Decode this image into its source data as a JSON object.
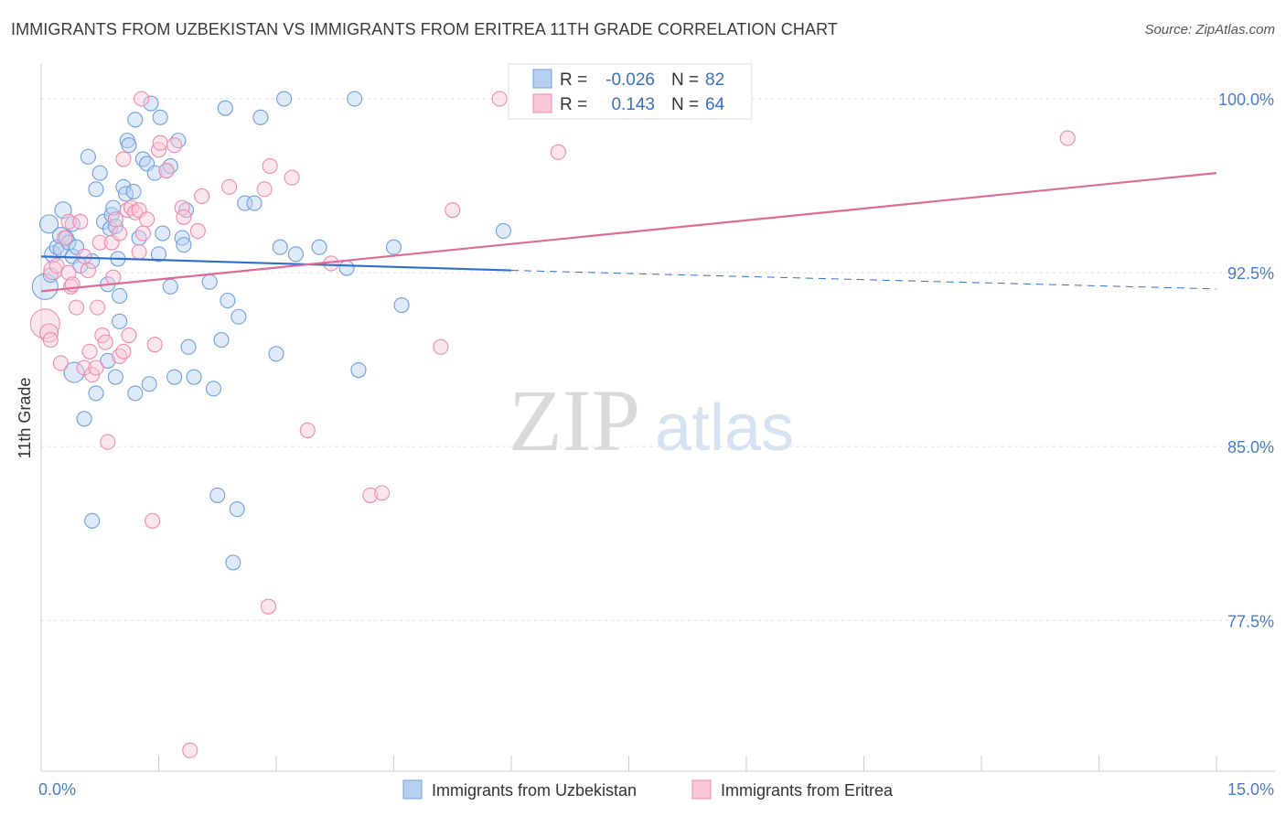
{
  "chart_data": {
    "type": "scatter",
    "title": "IMMIGRANTS FROM UZBEKISTAN VS IMMIGRANTS FROM ERITREA 11TH GRADE CORRELATION CHART",
    "source": "Source: ZipAtlas.com",
    "ylabel": "11th Grade",
    "xlim": [
      0,
      15
    ],
    "ylim": [
      71,
      101.5
    ],
    "x_tick_labels": [
      "0.0%",
      "15.0%"
    ],
    "y_ticks": [
      100.0,
      92.5,
      85.0,
      77.5
    ],
    "y_tick_labels": [
      "100.0%",
      "92.5%",
      "85.0%",
      "77.5%"
    ],
    "watermark": {
      "zip": "ZIP",
      "atlas": "atlas"
    },
    "colors": {
      "blue": "#6f9fe0",
      "blue_fill": "#b8d0f0",
      "pink": "#ee8ab0",
      "pink_fill": "#f8c7d8",
      "blue_line": "#2f6fce",
      "pink_line": "#e06b96"
    },
    "legend": {
      "r_label": "R =",
      "n_label": "N =",
      "rows": [
        {
          "r": "-0.026",
          "n": "82",
          "color": "blue"
        },
        {
          "r": "0.143",
          "n": "64",
          "color": "pink"
        }
      ]
    },
    "series": [
      {
        "name": "Immigrants from Uzbekistan",
        "color": "blue",
        "trend": {
          "x0": 0.0,
          "y0": 93.2,
          "x1": 6.0,
          "y1": 92.6,
          "dash_x1": 15.0,
          "dash_y1": 91.8
        },
        "points": [
          [
            0.05,
            91.9,
            14
          ],
          [
            0.1,
            94.6,
            10
          ],
          [
            0.12,
            92.4,
            8
          ],
          [
            0.15,
            93.3,
            9
          ],
          [
            0.2,
            93.6,
            8
          ],
          [
            0.25,
            94.1,
            9
          ],
          [
            0.25,
            93.5,
            8
          ],
          [
            0.28,
            95.2,
            9
          ],
          [
            0.32,
            94.0,
            8
          ],
          [
            0.35,
            93.8,
            8
          ],
          [
            0.4,
            94.6,
            8
          ],
          [
            0.4,
            93.2,
            8
          ],
          [
            0.42,
            88.2,
            11
          ],
          [
            0.45,
            93.6,
            8
          ],
          [
            0.5,
            92.8,
            8
          ],
          [
            0.55,
            86.2,
            8
          ],
          [
            0.6,
            97.5,
            8
          ],
          [
            0.65,
            81.8,
            8
          ],
          [
            0.65,
            93.0,
            8
          ],
          [
            0.7,
            87.3,
            8
          ],
          [
            0.7,
            96.1,
            8
          ],
          [
            0.75,
            96.8,
            8
          ],
          [
            0.8,
            94.7,
            8
          ],
          [
            0.85,
            92.0,
            8
          ],
          [
            0.85,
            88.7,
            8
          ],
          [
            0.88,
            94.4,
            8
          ],
          [
            0.9,
            95.0,
            8
          ],
          [
            0.92,
            95.3,
            8
          ],
          [
            0.95,
            88.0,
            8
          ],
          [
            0.95,
            94.5,
            8
          ],
          [
            0.98,
            93.1,
            8
          ],
          [
            1.0,
            90.4,
            8
          ],
          [
            1.0,
            91.5,
            8
          ],
          [
            1.05,
            96.2,
            8
          ],
          [
            1.08,
            95.9,
            8
          ],
          [
            1.1,
            98.2,
            8
          ],
          [
            1.12,
            98.0,
            8
          ],
          [
            1.18,
            96.0,
            8
          ],
          [
            1.2,
            99.1,
            8
          ],
          [
            1.2,
            87.3,
            8
          ],
          [
            1.25,
            94.0,
            8
          ],
          [
            1.3,
            97.4,
            8
          ],
          [
            1.35,
            97.2,
            8
          ],
          [
            1.38,
            87.7,
            8
          ],
          [
            1.4,
            99.8,
            8
          ],
          [
            1.45,
            96.8,
            8
          ],
          [
            1.5,
            93.3,
            8
          ],
          [
            1.52,
            99.2,
            8
          ],
          [
            1.55,
            94.2,
            8
          ],
          [
            1.6,
            96.9,
            8
          ],
          [
            1.65,
            97.1,
            8
          ],
          [
            1.65,
            91.9,
            8
          ],
          [
            1.7,
            88.0,
            8
          ],
          [
            1.75,
            98.2,
            8
          ],
          [
            1.8,
            94.0,
            8
          ],
          [
            1.82,
            93.7,
            8
          ],
          [
            1.85,
            95.2,
            8
          ],
          [
            1.88,
            89.3,
            8
          ],
          [
            1.95,
            88.0,
            8
          ],
          [
            2.2,
            87.5,
            8
          ],
          [
            2.15,
            92.1,
            8
          ],
          [
            2.25,
            82.9,
            8
          ],
          [
            2.3,
            89.6,
            8
          ],
          [
            2.35,
            99.6,
            8
          ],
          [
            2.38,
            91.3,
            8
          ],
          [
            2.45,
            80.0,
            8
          ],
          [
            2.5,
            82.3,
            8
          ],
          [
            2.52,
            90.6,
            8
          ],
          [
            2.6,
            95.5,
            8
          ],
          [
            2.72,
            95.5,
            8
          ],
          [
            2.8,
            99.2,
            8
          ],
          [
            3.0,
            89.0,
            8
          ],
          [
            3.05,
            93.6,
            8
          ],
          [
            3.1,
            100.0,
            8
          ],
          [
            3.25,
            93.3,
            8
          ],
          [
            3.55,
            93.6,
            8
          ],
          [
            3.9,
            92.7,
            8
          ],
          [
            4.0,
            100.0,
            8
          ],
          [
            4.05,
            88.3,
            8
          ],
          [
            4.5,
            93.6,
            8
          ],
          [
            4.6,
            91.1,
            8
          ],
          [
            5.9,
            94.3,
            8
          ]
        ]
      },
      {
        "name": "Immigrants from Eritrea",
        "color": "pink",
        "trend": {
          "x0": 0.0,
          "y0": 91.7,
          "x1": 15.0,
          "y1": 96.8
        },
        "points": [
          [
            0.05,
            90.3,
            16
          ],
          [
            0.1,
            89.9,
            10
          ],
          [
            0.12,
            89.6,
            8
          ],
          [
            0.15,
            92.6,
            10
          ],
          [
            0.2,
            92.8,
            8
          ],
          [
            0.25,
            88.6,
            8
          ],
          [
            0.3,
            94.0,
            8
          ],
          [
            0.35,
            92.5,
            8
          ],
          [
            0.35,
            94.7,
            8
          ],
          [
            0.38,
            91.9,
            8
          ],
          [
            0.4,
            92.0,
            8
          ],
          [
            0.45,
            91.0,
            8
          ],
          [
            0.5,
            94.7,
            8
          ],
          [
            0.55,
            88.4,
            8
          ],
          [
            0.55,
            93.2,
            8
          ],
          [
            0.6,
            92.6,
            8
          ],
          [
            0.62,
            89.1,
            8
          ],
          [
            0.65,
            88.1,
            8
          ],
          [
            0.7,
            88.4,
            8
          ],
          [
            0.72,
            91.0,
            8
          ],
          [
            0.75,
            93.8,
            8
          ],
          [
            0.78,
            89.8,
            8
          ],
          [
            0.82,
            89.5,
            8
          ],
          [
            0.85,
            85.2,
            8
          ],
          [
            0.9,
            93.8,
            8
          ],
          [
            0.92,
            92.3,
            8
          ],
          [
            0.95,
            94.8,
            8
          ],
          [
            1.0,
            94.2,
            8
          ],
          [
            1.0,
            88.9,
            8
          ],
          [
            1.05,
            97.4,
            8
          ],
          [
            1.05,
            89.1,
            8
          ],
          [
            1.1,
            95.2,
            8
          ],
          [
            1.12,
            89.8,
            8
          ],
          [
            1.15,
            95.3,
            8
          ],
          [
            1.2,
            95.1,
            8
          ],
          [
            1.25,
            95.2,
            8
          ],
          [
            1.25,
            93.4,
            8
          ],
          [
            1.28,
            100.0,
            8
          ],
          [
            1.3,
            94.2,
            8
          ],
          [
            1.35,
            94.8,
            8
          ],
          [
            1.42,
            81.8,
            8
          ],
          [
            1.45,
            89.4,
            8
          ],
          [
            1.5,
            97.8,
            8
          ],
          [
            1.52,
            98.1,
            8
          ],
          [
            1.6,
            96.9,
            8
          ],
          [
            1.7,
            98.0,
            8
          ],
          [
            1.8,
            95.3,
            8
          ],
          [
            1.82,
            94.9,
            8
          ],
          [
            1.9,
            71.9,
            8
          ],
          [
            2.0,
            94.3,
            8
          ],
          [
            2.05,
            95.8,
            8
          ],
          [
            2.4,
            96.2,
            8
          ],
          [
            2.85,
            96.1,
            8
          ],
          [
            2.9,
            78.1,
            8
          ],
          [
            2.92,
            97.1,
            8
          ],
          [
            3.2,
            96.6,
            8
          ],
          [
            3.4,
            85.7,
            8
          ],
          [
            3.7,
            92.9,
            8
          ],
          [
            4.2,
            82.9,
            8
          ],
          [
            4.35,
            83.0,
            8
          ],
          [
            5.1,
            89.3,
            8
          ],
          [
            5.25,
            95.2,
            8
          ],
          [
            5.85,
            100.0,
            8
          ],
          [
            6.6,
            97.7,
            8
          ],
          [
            13.1,
            98.3,
            8
          ]
        ]
      }
    ]
  }
}
